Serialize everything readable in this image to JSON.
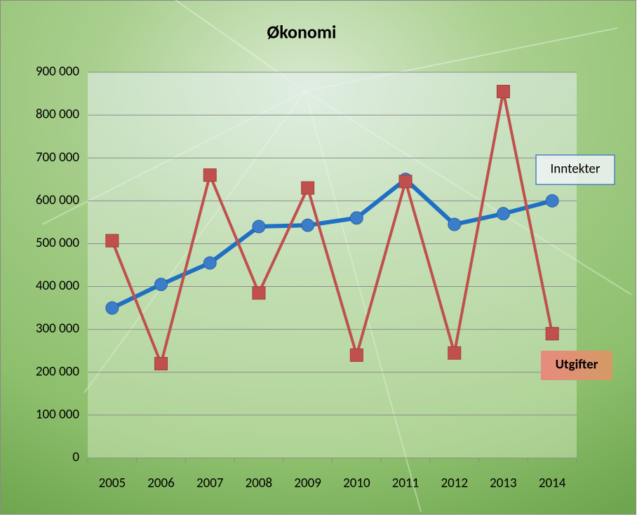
{
  "chart_data": {
    "type": "line",
    "title": "Økonomi",
    "categories": [
      "2005",
      "2006",
      "2007",
      "2008",
      "2009",
      "2010",
      "2011",
      "2012",
      "2013",
      "2014"
    ],
    "series": [
      {
        "name": "Inntekter",
        "color": "#1f6fc5",
        "marker": "circle",
        "values": [
          350000,
          405000,
          455000,
          540000,
          543000,
          560000,
          650000,
          545000,
          570000,
          600000
        ]
      },
      {
        "name": "Utgifter",
        "color": "#c0504d",
        "marker": "square",
        "values": [
          507000,
          220000,
          660000,
          385000,
          630000,
          240000,
          645000,
          245000,
          855000,
          290000
        ]
      }
    ],
    "ylim": [
      0,
      900000
    ],
    "yticks": [
      0,
      {
        "value": 100000,
        "label": "100 000"
      },
      {
        "value": 200000,
        "label": "200 000"
      },
      {
        "value": 300000,
        "label": "300 000"
      },
      {
        "value": 400000,
        "label": "400 000"
      },
      {
        "value": 500000,
        "label": "500 000"
      },
      {
        "value": 600000,
        "label": "600 000"
      },
      {
        "value": 700000,
        "label": "700 000"
      },
      {
        "value": 800000,
        "label": "800 000"
      },
      {
        "value": 900000,
        "label": "900 000"
      }
    ],
    "grid": true
  }
}
